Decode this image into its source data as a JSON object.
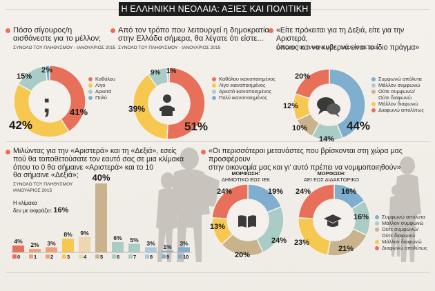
{
  "title": "Η ΕΛΛΗΝΙΚΗ ΝΕΟΛΑΙΑ: ΑΞΙΕΣ ΚΑΙ ΠΟΛΙΤΙΚΗ",
  "colors": {
    "red": "#e8705a",
    "orange": "#f2a07a",
    "yellow": "#f7c84f",
    "teal": "#a9cdc6",
    "blue": "#7faecf",
    "lightblue": "#a9c9e1",
    "tan": "#c8b38d",
    "cream": "#ecd7ae"
  },
  "q1": {
    "question_line1": "Πόσο σίγουρος/η",
    "question_line2": "αισθάνεστε για το μέλλον;",
    "source": "ΣΥΝΟΛΟ ΤΟΥ ΠΛΗΘΥΣΜΟΥ - ΙΑΝΟΥΑΡΙΟΣ 2015",
    "icon": "question-mark-icon",
    "labels": {
      "a": "41%",
      "b": "42%",
      "c": "15%",
      "d": "2%"
    }
  },
  "q2": {
    "question_line1": "Από τον τρόπο που λειτουργεί η δημοκρατία",
    "question_line2": "στην Ελλάδα σήμερα, θα λέγατε ότι είστε...",
    "source": "ΣΥΝΟΛΟ ΤΟΥ ΠΛΗΘΥΣΜΟΥ - ΙΑΝΟΥΑΡΙΟΣ 2015",
    "icon": "speaker-icon",
    "labels": {
      "a": "51%",
      "b": "39%",
      "c": "9%",
      "d": "1%"
    }
  },
  "q3": {
    "question_line1": "«Είτε πρόκειται για τη Δεξιά, είτε για την Αριστερά,",
    "question_line2": "όποιος και να κυβερνά είναι το ίδιο πράγμα»",
    "source": "ΣΥΝΟΛΟ ΤΟΥ ΠΛΗΘΥΣΜΟΥ - ΙΑΝΟΥΑΡΙΟΣ 2015",
    "icon": "speech-bubbles-icon",
    "labels": {
      "a": "44%",
      "b": "14%",
      "c": "10%",
      "d": "12%",
      "e": "20%"
    }
  },
  "q4": {
    "question_lines": [
      "Μιλώντας για την «Αριστερά» και τη «Δεξιά», εσείς",
      "πού θα τοποθετούσατε τον εαυτό σας σε μια κλίμακα",
      "όπου το 0 θα σήμαινε «Αριστερά» και το 10",
      "θα σήμαινε «Δεξιά»;"
    ],
    "source_line1": "ΣΥΝΟΛΟ ΤΟΥ ΠΛΗΘΥΣΜΟΥ",
    "source_line2": "ΙΑΝΟΥΑΡΙΟΣ 2015",
    "note_line1": "Η κλίμακα",
    "note_line2": "δεν με εκφράζει:",
    "note_value": "16%",
    "ticks": [
      "0",
      "1",
      "2",
      "3",
      "4",
      "5",
      "6",
      "7",
      "8",
      "9",
      "10"
    ],
    "bar_labels": [
      "4%",
      "2%",
      "3%",
      "8%",
      "9%",
      "40%",
      "6%",
      "5%",
      "3%",
      "1%",
      "3%"
    ]
  },
  "q5": {
    "question_line1": "«Οι περισσότεροι μετανάστες που βρίσκονται στη χώρα μας προσφέρουν",
    "question_line2": "στην οικονομία μας και γι' αυτό πρέπει να νομιμοποιηθούν»",
    "left": {
      "head": "ΜΟΡΦΩΣΗ:",
      "sub": "ΔΗΜΟΤΙΚΟ ΕΩΣ ΙΕΚ",
      "icon": "book-icon",
      "labels": {
        "a": "19%",
        "b": "24%",
        "c": "20%",
        "d": "13%",
        "e": "24%"
      }
    },
    "right": {
      "head": "ΜΟΡΦΩΣΗ:",
      "sub": "ΑΕΙ ΕΩΣ ΔΙΔΑΚΤΟΡΙΚΟ",
      "icon": "graduation-cap-icon",
      "labels": {
        "a": "16%",
        "b": "16%",
        "c": "21%",
        "d": "23%",
        "e": "24%"
      }
    }
  },
  "legends": {
    "q1": [
      "Καθόλου",
      "Λίγο",
      "Αρκετά",
      "Πολύ"
    ],
    "q2": [
      "Καθόλου ικανοποιημένος",
      "Λίγο ικανοποιημένος",
      "Αρκετά ικανοποιημένος",
      "Πολύ ικανοποιημένος"
    ],
    "q3": [
      "Συμφωνώ απόλυτα",
      "Μάλλον συμφωνώ",
      "Ούτε συμφωνώ/",
      "Ούτε διαφωνώ",
      "Μάλλον διαφωνώ",
      "Διαφωνώ απολύτως"
    ],
    "q5": [
      "Συμφωνώ απόλυτα",
      "Μάλλον συμφωνώ",
      "Ούτε συμφωνώ/",
      "Ούτε διαφωνώ",
      "Μάλλον διαφωνώ",
      "Διαφωνώ απολύτως"
    ]
  },
  "chart_data": [
    {
      "type": "pie",
      "title": "Πόσο σίγουρος/η αισθάνεστε για το μέλλον;",
      "categories": [
        "Καθόλου",
        "Λίγο",
        "Αρκετά",
        "Πολύ"
      ],
      "values": [
        41,
        42,
        15,
        2
      ],
      "colors": [
        "#e8705a",
        "#f7c84f",
        "#a9cdc6",
        "#7faecf"
      ]
    },
    {
      "type": "pie",
      "title": "Από τον τρόπο που λειτουργεί η δημοκρατία στην Ελλάδα σήμερα, θα λέγατε ότι είστε...",
      "categories": [
        "Καθόλου ικανοποιημένος",
        "Λίγο ικανοποιημένος",
        "Αρκετά ικανοποιημένος",
        "Πολύ ικανοποιημένος"
      ],
      "values": [
        51,
        39,
        9,
        1
      ],
      "colors": [
        "#e8705a",
        "#f7c84f",
        "#a9cdc6",
        "#7faecf"
      ]
    },
    {
      "type": "pie",
      "title": "«Είτε πρόκειται για τη Δεξιά, είτε για την Αριστερά, όποιος και να κυβερνά είναι το ίδιο πράγμα»",
      "categories": [
        "Συμφωνώ απόλυτα",
        "Μάλλον συμφωνώ",
        "Ούτε συμφωνώ/ Ούτε διαφωνώ",
        "Μάλλον διαφωνώ",
        "Διαφωνώ απολύτως"
      ],
      "values": [
        44,
        14,
        10,
        12,
        20
      ],
      "colors": [
        "#7faecf",
        "#a9cdc6",
        "#c8b38d",
        "#f7c84f",
        "#e8705a"
      ]
    },
    {
      "type": "bar",
      "categories": [
        "0",
        "1",
        "2",
        "3",
        "4",
        "5",
        "6",
        "7",
        "8",
        "9",
        "10"
      ],
      "values": [
        4,
        2,
        3,
        8,
        9,
        40,
        6,
        5,
        3,
        1,
        3
      ],
      "colors": [
        "#e8705a",
        "#f2a07a",
        "#f2a07a",
        "#f7c84f",
        "#ecd7ae",
        "#c8b38d",
        "#a9cdc6",
        "#a9cdc6",
        "#a9c9e1",
        "#7faecf",
        "#7faecf"
      ],
      "ylim": [
        0,
        40
      ]
    },
    {
      "type": "pie",
      "title": "ΜΟΡΦΩΣΗ: ΔΗΜΟΤΙΚΟ ΕΩΣ ΙΕΚ",
      "categories": [
        "Συμφωνώ απόλυτα",
        "Μάλλον συμφωνώ",
        "Ούτε συμφωνώ/ Ούτε διαφωνώ",
        "Μάλλον διαφωνώ",
        "Διαφωνώ απολύτως"
      ],
      "values": [
        19,
        24,
        20,
        13,
        24
      ],
      "colors": [
        "#7faecf",
        "#a9cdc6",
        "#c8b38d",
        "#f7c84f",
        "#e8705a"
      ]
    },
    {
      "type": "pie",
      "title": "ΜΟΡΦΩΣΗ: ΑΕΙ ΕΩΣ ΔΙΔΑΚΤΟΡΙΚΟ",
      "categories": [
        "Συμφωνώ απόλυτα",
        "Μάλλον συμφωνώ",
        "Ούτε συμφωνώ/ Ούτε διαφωνώ",
        "Μάλλον διαφωνώ",
        "Διαφωνώ απολύτως"
      ],
      "values": [
        16,
        16,
        21,
        23,
        24
      ],
      "colors": [
        "#7faecf",
        "#a9cdc6",
        "#c8b38d",
        "#f7c84f",
        "#e8705a"
      ]
    }
  ]
}
